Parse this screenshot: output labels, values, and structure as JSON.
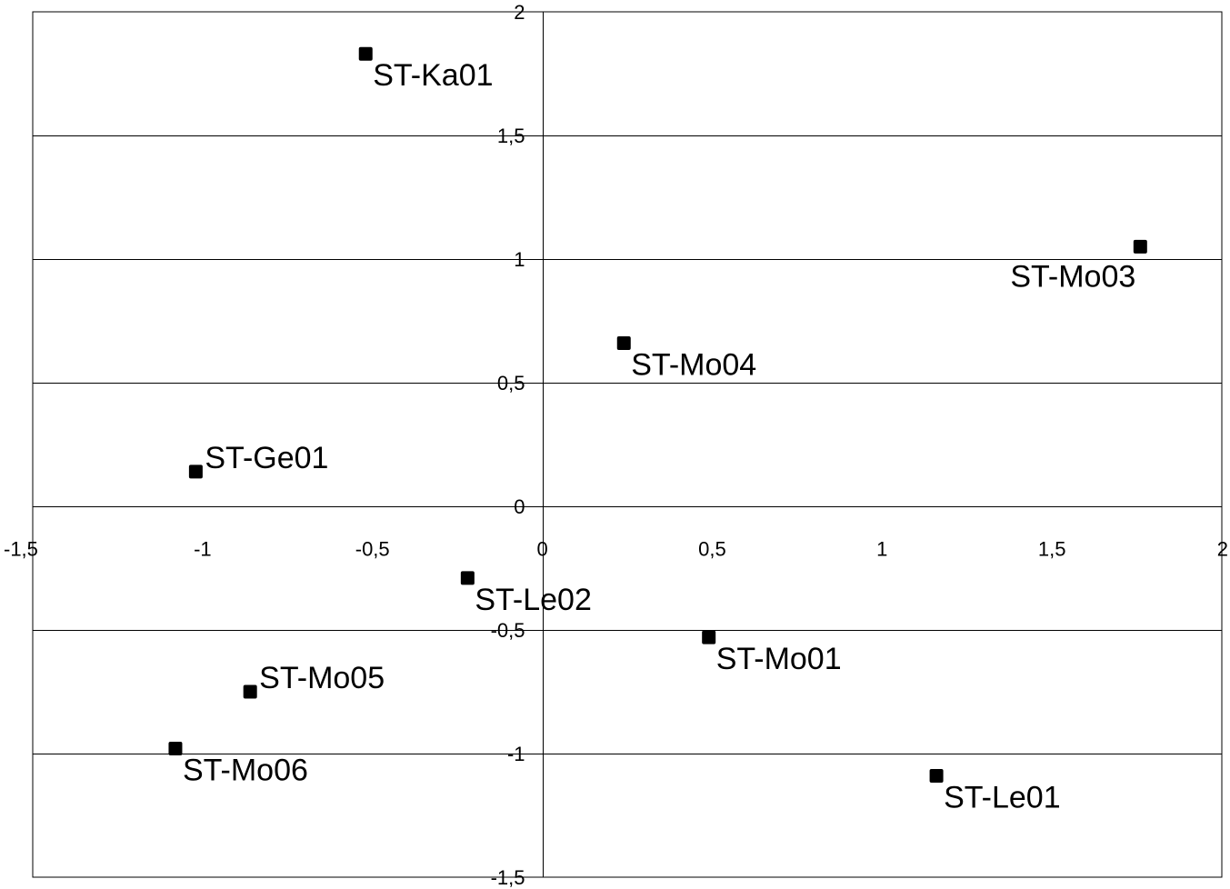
{
  "chart_data": {
    "type": "scatter",
    "title": "",
    "xlabel": "",
    "ylabel": "",
    "xlim": [
      -1.5,
      2
    ],
    "ylim": [
      -1.5,
      2
    ],
    "x_ticks": [
      -1.5,
      -1,
      -0.5,
      0,
      0.5,
      1,
      1.5,
      2
    ],
    "y_ticks": [
      -1.5,
      -1,
      -0.5,
      0,
      0.5,
      1,
      1.5,
      2
    ],
    "x_tick_labels": [
      "-1,5",
      "-1",
      "-0,5",
      "0",
      "0,5",
      "1",
      "1,5",
      "2"
    ],
    "y_tick_labels": [
      "-1,5",
      "-1",
      "-0,5",
      "0",
      "0,5",
      "1",
      "1,5",
      "2"
    ],
    "grid": "horizontal",
    "marker": "square",
    "marker_color": "#000000",
    "points": [
      {
        "label": "ST-Ka01",
        "x": -0.52,
        "y": 1.83,
        "label_pos": "below-right"
      },
      {
        "label": "ST-Mo03",
        "x": 1.76,
        "y": 1.05,
        "label_pos": "below-left"
      },
      {
        "label": "ST-Mo04",
        "x": 0.24,
        "y": 0.66,
        "label_pos": "below-right"
      },
      {
        "label": "ST-Ge01",
        "x": -1.02,
        "y": 0.14,
        "label_pos": "above-right"
      },
      {
        "label": "ST-Le02",
        "x": -0.22,
        "y": -0.29,
        "label_pos": "below-right"
      },
      {
        "label": "ST-Mo01",
        "x": 0.49,
        "y": -0.53,
        "label_pos": "below-right"
      },
      {
        "label": "ST-Mo05",
        "x": -0.86,
        "y": -0.75,
        "label_pos": "above-right"
      },
      {
        "label": "ST-Mo06",
        "x": -1.08,
        "y": -0.98,
        "label_pos": "below-right"
      },
      {
        "label": "ST-Le01",
        "x": 1.16,
        "y": -1.09,
        "label_pos": "below-right"
      }
    ]
  }
}
